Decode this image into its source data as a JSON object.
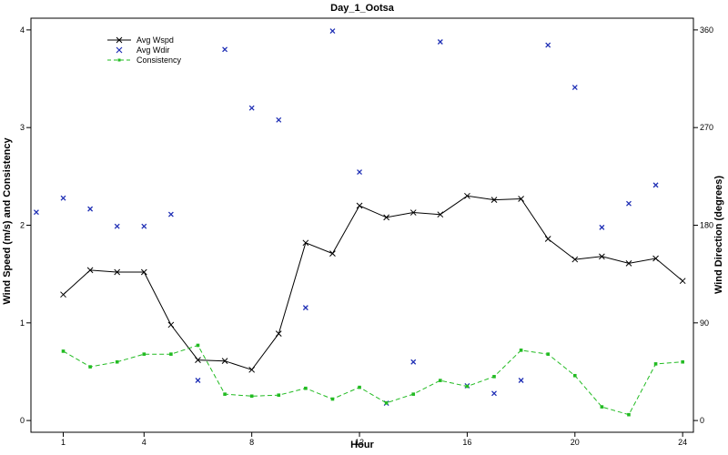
{
  "chart_data": {
    "type": "line",
    "title": "Day_1_Ootsa",
    "xlabel": "Hour",
    "ylabel_left": "Wind Speed (m/s) and Consistency",
    "ylabel_right": "Wind Direction (degrees)",
    "xlim": [
      -0.2,
      24.4
    ],
    "ylim_left": [
      -0.12,
      4.12
    ],
    "ylim_right": [
      -10.8,
      370.8
    ],
    "x_ticks": [
      1,
      4,
      8,
      12,
      16,
      20,
      24
    ],
    "y_left_ticks": [
      0,
      1,
      2,
      3,
      4
    ],
    "y_right_ticks": [
      0,
      90,
      180,
      270,
      360
    ],
    "grid": false,
    "legend_position": "top-left",
    "series": [
      {
        "name": "Avg Wspd",
        "axis": "left",
        "style": "line-cross",
        "color": "#000000",
        "x": [
          1,
          2,
          3,
          4,
          5,
          6,
          7,
          8,
          9,
          10,
          11,
          12,
          13,
          14,
          15,
          16,
          17,
          18,
          19,
          20,
          21,
          22,
          23,
          24
        ],
        "y": [
          1.29,
          1.54,
          1.52,
          1.52,
          0.98,
          0.62,
          0.61,
          0.52,
          0.89,
          1.82,
          1.71,
          2.2,
          2.08,
          2.13,
          2.11,
          2.3,
          2.26,
          2.27,
          1.86,
          1.65,
          1.68,
          1.61,
          1.66,
          1.43
        ]
      },
      {
        "name": "Avg Wdir",
        "axis": "right",
        "style": "points-x",
        "color": "#1f2fb5",
        "x": [
          0,
          1,
          2,
          3,
          4,
          5,
          6,
          7,
          8,
          9,
          10,
          11,
          12,
          13,
          14,
          15,
          16,
          17,
          18,
          19,
          20,
          21,
          22,
          23,
          24
        ],
        "y": [
          192,
          205,
          195,
          179,
          179,
          190,
          37,
          342,
          288,
          277,
          104,
          359,
          229,
          16,
          54,
          349,
          32,
          25,
          37,
          346,
          307,
          178,
          200,
          217,
          null
        ]
      },
      {
        "name": "Consistency",
        "axis": "left",
        "style": "dashed-square",
        "color": "#22bb22",
        "x": [
          1,
          2,
          3,
          4,
          5,
          6,
          7,
          8,
          9,
          10,
          11,
          12,
          13,
          14,
          15,
          16,
          17,
          18,
          19,
          20,
          21,
          22,
          23,
          24
        ],
        "y": [
          0.71,
          0.55,
          0.6,
          0.68,
          0.68,
          0.77,
          0.27,
          0.25,
          0.26,
          0.33,
          0.22,
          0.34,
          0.18,
          0.27,
          0.41,
          0.35,
          0.45,
          0.72,
          0.68,
          0.46,
          0.14,
          0.06,
          0.58,
          0.6
        ]
      }
    ]
  }
}
